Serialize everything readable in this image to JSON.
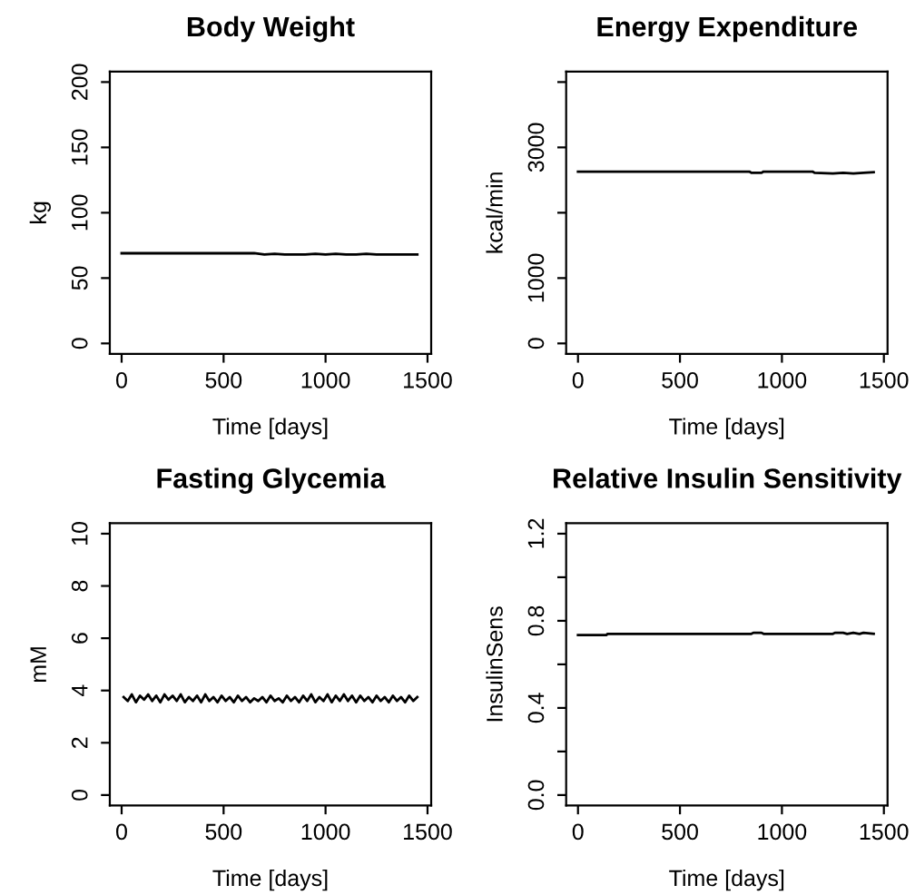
{
  "chart_data": [
    {
      "type": "line",
      "title": "Body Weight",
      "xlabel": "Time [days]",
      "ylabel": "kg",
      "xlim": [
        -58,
        1518
      ],
      "xticks": [
        0,
        500,
        1000,
        1500
      ],
      "ylim": [
        -8,
        208
      ],
      "yticks": [
        0,
        50,
        100,
        150,
        200
      ],
      "grid": false,
      "series": [
        {
          "color": "#000000",
          "x": [
            0,
            650,
            700,
            750,
            800,
            900,
            950,
            1000,
            1050,
            1100,
            1150,
            1200,
            1250,
            1300,
            1350,
            1400,
            1450
          ],
          "values": [
            69,
            69,
            68,
            68.5,
            68,
            68,
            68.5,
            68,
            68.5,
            68,
            68,
            68.5,
            68,
            68,
            68,
            68,
            68
          ]
        }
      ]
    },
    {
      "type": "line",
      "title": "Energy Expenditure",
      "xlabel": "Time [days]",
      "ylabel": "kcal/min",
      "xlim": [
        -58,
        1518
      ],
      "xticks": [
        0,
        500,
        1000,
        1500
      ],
      "ylim": [
        -160,
        4160
      ],
      "yticks": [
        0,
        1000,
        {
          "value": 2000,
          "label": null
        },
        3000,
        {
          "value": 4000,
          "label": null
        }
      ],
      "grid": false,
      "series": [
        {
          "color": "#000000",
          "x": [
            0,
            840,
            850,
            900,
            910,
            1150,
            1160,
            1250,
            1300,
            1350,
            1400,
            1450
          ],
          "values": [
            2630,
            2630,
            2610,
            2610,
            2630,
            2630,
            2610,
            2600,
            2610,
            2600,
            2610,
            2620
          ]
        }
      ]
    },
    {
      "type": "line",
      "title": "Fasting Glycemia",
      "xlabel": "Time [days]",
      "ylabel": "mM",
      "xlim": [
        -58,
        1518
      ],
      "xticks": [
        0,
        500,
        1000,
        1500
      ],
      "ylim": [
        -0.4,
        10.4
      ],
      "yticks": [
        0,
        2,
        4,
        6,
        8,
        10
      ],
      "grid": false,
      "series": [
        {
          "color": "#000000",
          "x": [
            10,
            30,
            50,
            70,
            90,
            110,
            130,
            150,
            170,
            190,
            210,
            230,
            250,
            270,
            290,
            310,
            330,
            350,
            370,
            390,
            410,
            430,
            450,
            470,
            490,
            510,
            530,
            550,
            570,
            590,
            610,
            630,
            650,
            670,
            690,
            710,
            730,
            750,
            770,
            790,
            810,
            830,
            850,
            870,
            890,
            910,
            930,
            950,
            970,
            990,
            1010,
            1030,
            1050,
            1070,
            1090,
            1110,
            1130,
            1150,
            1170,
            1190,
            1210,
            1230,
            1250,
            1270,
            1290,
            1310,
            1330,
            1350,
            1370,
            1390,
            1410,
            1430,
            1450
          ],
          "values": [
            3.75,
            3.6,
            3.85,
            3.55,
            3.8,
            3.65,
            3.85,
            3.6,
            3.8,
            3.55,
            3.85,
            3.65,
            3.8,
            3.6,
            3.85,
            3.55,
            3.75,
            3.6,
            3.8,
            3.55,
            3.85,
            3.6,
            3.75,
            3.55,
            3.8,
            3.6,
            3.75,
            3.55,
            3.8,
            3.6,
            3.75,
            3.55,
            3.7,
            3.6,
            3.75,
            3.55,
            3.8,
            3.6,
            3.7,
            3.55,
            3.8,
            3.6,
            3.75,
            3.55,
            3.8,
            3.6,
            3.85,
            3.55,
            3.75,
            3.6,
            3.85,
            3.55,
            3.8,
            3.6,
            3.85,
            3.6,
            3.8,
            3.55,
            3.8,
            3.6,
            3.75,
            3.55,
            3.8,
            3.6,
            3.75,
            3.55,
            3.8,
            3.6,
            3.75,
            3.55,
            3.8,
            3.6,
            3.75
          ]
        }
      ]
    },
    {
      "type": "line",
      "title": "Relative Insulin Sensitivity",
      "xlabel": "Time [days]",
      "ylabel": "InsulinSens",
      "xlim": [
        -58,
        1518
      ],
      "xticks": [
        0,
        500,
        1000,
        1500
      ],
      "ylim": [
        -0.048,
        1.248
      ],
      "yticks": [
        {
          "value": 0,
          "label": "0.0"
        },
        {
          "value": 0.2,
          "label": null
        },
        0.4,
        {
          "value": 0.6,
          "label": null
        },
        0.8,
        {
          "value": 1.0,
          "label": null
        },
        1.2
      ],
      "grid": false,
      "series": [
        {
          "color": "#000000",
          "x": [
            0,
            140,
            145,
            850,
            860,
            900,
            910,
            1250,
            1260,
            1300,
            1320,
            1350,
            1380,
            1400,
            1450
          ],
          "values": [
            0.735,
            0.735,
            0.74,
            0.74,
            0.745,
            0.745,
            0.74,
            0.74,
            0.745,
            0.745,
            0.74,
            0.745,
            0.74,
            0.745,
            0.74
          ]
        }
      ]
    }
  ]
}
